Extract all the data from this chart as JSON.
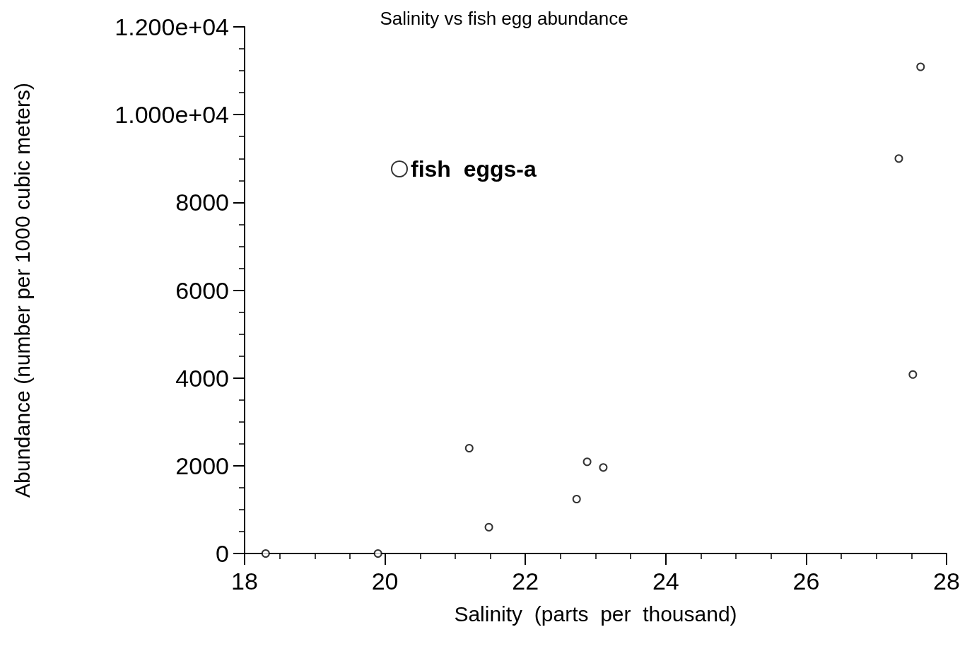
{
  "chart_data": {
    "type": "scatter",
    "title": "Salinity vs fish egg abundance",
    "xlabel": "Salinity  (parts  per  thousand)",
    "ylabel": "Abundance (number per 1000 cubic meters)",
    "series": [
      {
        "name": "fish  eggs-a",
        "color": "#000000",
        "x": [
          18.3,
          19.9,
          21.2,
          21.48,
          22.73,
          22.88,
          23.11,
          27.32,
          27.52,
          27.63
        ],
        "values": [
          0,
          0,
          2400,
          600,
          1240,
          2090,
          1960,
          9000,
          4080,
          11090
        ]
      }
    ],
    "xlim": [
      18,
      28
    ],
    "xticks": [
      18,
      20,
      22,
      24,
      26,
      28
    ],
    "ylim": [
      0,
      12000
    ],
    "yticks": [
      0,
      2000,
      4000,
      6000,
      8000,
      {
        "value": 10000,
        "label": "1.000e+04"
      },
      {
        "value": 12000,
        "label": "1.200e+04"
      }
    ],
    "marker": "circle",
    "grid": false,
    "legend": "top left"
  }
}
